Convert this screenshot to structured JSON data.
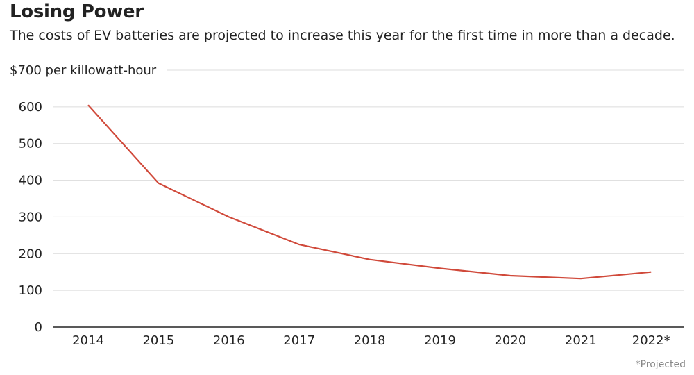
{
  "chart_data": {
    "type": "line",
    "title": "Losing Power",
    "subtitle": "The costs of EV batteries are projected to increase this year for the first time in more than a decade.",
    "ylabel": "$700 per killowatt-hour",
    "categories": [
      "2014",
      "2015",
      "2016",
      "2017",
      "2018",
      "2019",
      "2020",
      "2021",
      "2022*"
    ],
    "series": [
      {
        "values": [
          605,
          392,
          300,
          225,
          184,
          160,
          140,
          132,
          150
        ]
      }
    ],
    "yticks": [
      0,
      100,
      200,
      300,
      400,
      500,
      600
    ],
    "ylim": [
      0,
      700
    ],
    "grid": true,
    "line_color": "#d0493a",
    "footnote": "*Projected"
  }
}
